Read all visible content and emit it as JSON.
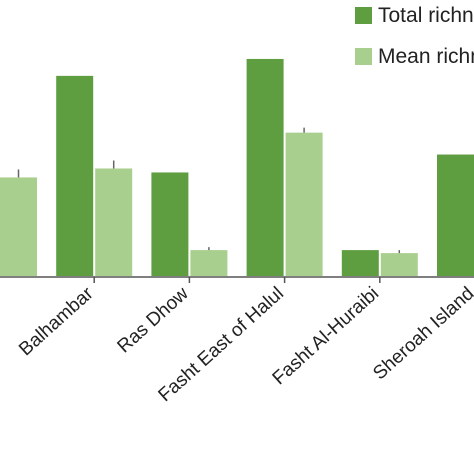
{
  "chart_data": {
    "type": "bar",
    "categories": [
      null,
      "Balhambar",
      "Ras Dhow",
      "Fasht East of Halul",
      "Fasht Al-Huraibi",
      "Sheroah Island"
    ],
    "series": [
      {
        "name": "Total richness",
        "color": "#5e9e40",
        "values": [
          null,
          201,
          104,
          218,
          26,
          122
        ]
      },
      {
        "name": "Mean richness",
        "color": "#a9cf8e",
        "values": [
          99,
          108,
          26,
          144,
          23,
          null
        ],
        "errors": [
          8,
          8,
          3,
          5,
          3,
          null
        ]
      }
    ],
    "ylim": [
      0,
      230
    ]
  }
}
